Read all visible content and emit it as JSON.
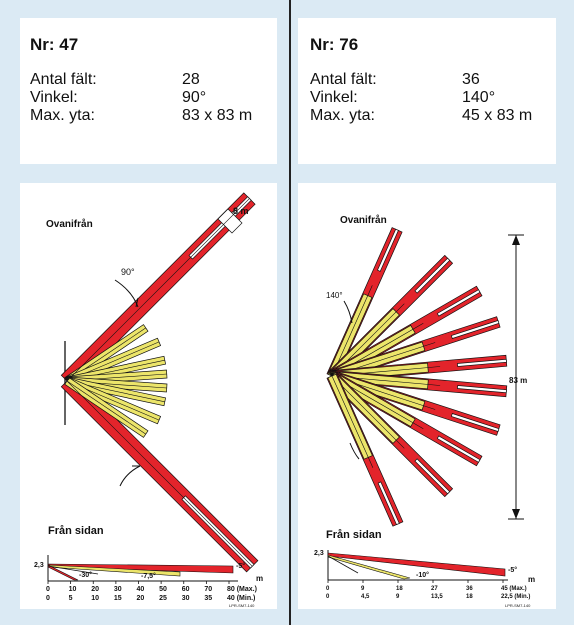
{
  "left": {
    "title": "Nr: 47",
    "specs": [
      {
        "label": "Antal fält:",
        "value": "28"
      },
      {
        "label": "Vinkel:",
        "value": "90°"
      },
      {
        "label": "Max. yta:",
        "value": "83 x 83 m"
      }
    ],
    "top_view_label": "Ovanifrån",
    "side_view_label": "Från  sidan",
    "angle_label": "90°",
    "width_label": "8 m",
    "height_label": "2,3",
    "side_angles": [
      "-30°",
      "-7,5°",
      "-5°"
    ],
    "x_unit": "m",
    "x_max_ticks": [
      "0",
      "10",
      "20",
      "30",
      "40",
      "50",
      "60",
      "70",
      "80 (Max.)"
    ],
    "x_min_ticks": [
      "0",
      "5",
      "10",
      "15",
      "20",
      "25",
      "30",
      "35",
      "40 (Min.)"
    ],
    "code": "LPR-SM7-140"
  },
  "right": {
    "title": "Nr: 76",
    "specs": [
      {
        "label": "Antal fält:",
        "value": "36"
      },
      {
        "label": "Vinkel:",
        "value": "140°"
      },
      {
        "label": "Max. yta:",
        "value": "45 x 83 m"
      }
    ],
    "top_view_label": "Ovanifrån",
    "side_view_label": "Från  sidan",
    "angle_label": "140°",
    "length_label": "83 m",
    "height_label": "2,3",
    "side_angles": [
      "-10°",
      "-5°"
    ],
    "x_unit": "m",
    "x_max_ticks": [
      "0",
      "9",
      "18",
      "27",
      "36",
      "45 (Max.)"
    ],
    "x_min_ticks": [
      "0",
      "4,5",
      "9",
      "13,5",
      "18",
      "22,5 (Min.)"
    ],
    "code": "LPR-SM7-140"
  },
  "colors": {
    "red": "#e3242b",
    "yellow": "#ece56a",
    "outline": "#111111",
    "background": "#dbeaf4"
  }
}
